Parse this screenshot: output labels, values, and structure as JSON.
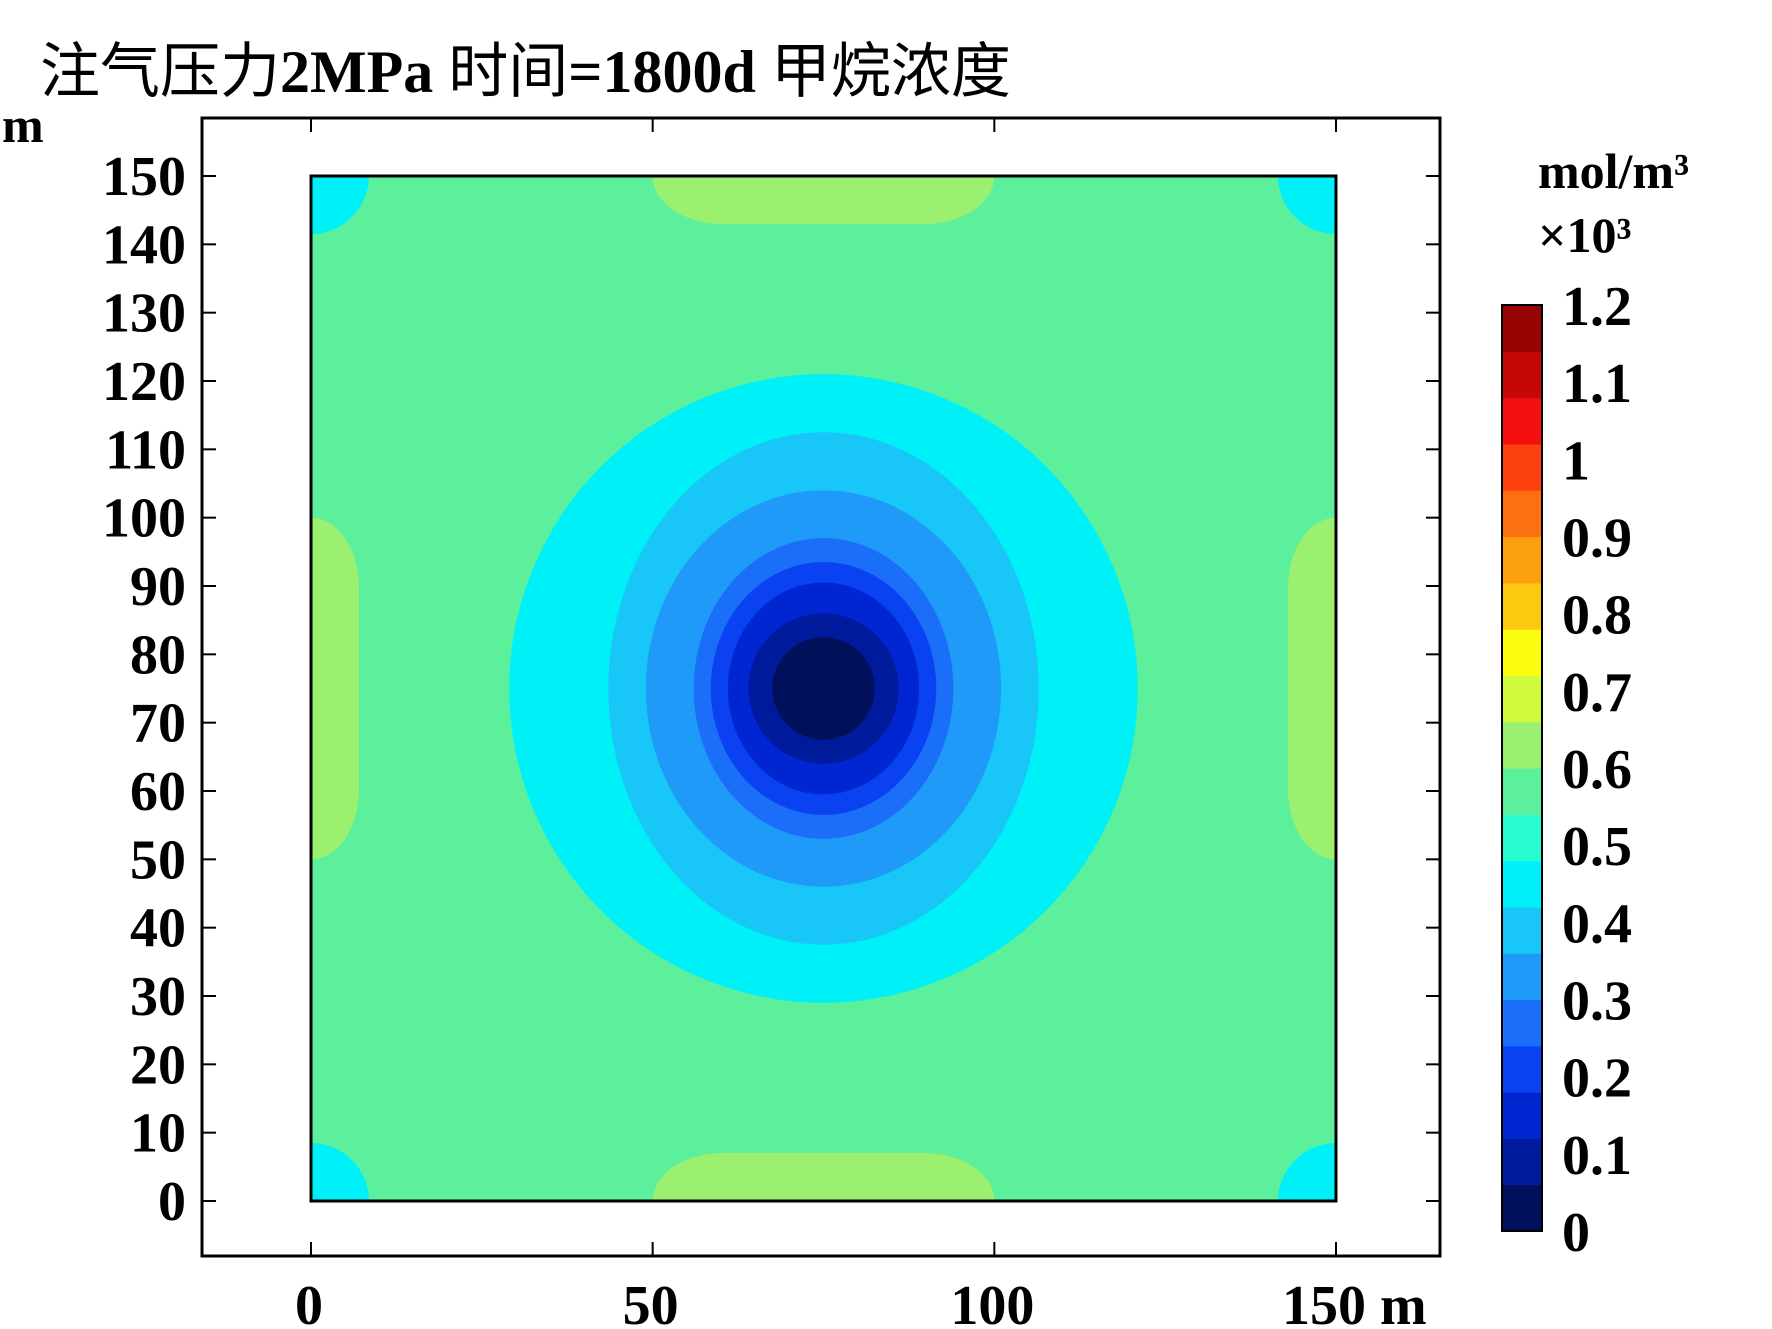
{
  "chart_data": {
    "type": "heatmap",
    "title_parts": [
      {
        "text": "注气压力",
        "bold": false
      },
      {
        "text": "2MPa",
        "bold": true
      },
      {
        "text": " 时间",
        "bold": false
      },
      {
        "text": "=1800d",
        "bold": true
      },
      {
        "text": " 甲烷浓度",
        "bold": false
      }
    ],
    "x_unit": "m",
    "y_unit": "m",
    "x_ticks": [
      0,
      50,
      100,
      150
    ],
    "y_ticks": [
      0,
      10,
      20,
      30,
      40,
      50,
      60,
      70,
      80,
      90,
      100,
      110,
      120,
      130,
      140,
      150
    ],
    "x_tick_labels": [
      "0",
      "50",
      "100",
      "150 m"
    ],
    "y_tick_labels": [
      "0",
      "10",
      "20",
      "30",
      "40",
      "50",
      "60",
      "70",
      "80",
      "90",
      "100",
      "110",
      "120",
      "130",
      "140",
      "150"
    ],
    "xlim": [
      -16,
      166
    ],
    "ylim": [
      -8,
      158
    ],
    "domain": {
      "x": [
        0,
        150
      ],
      "y": [
        0,
        150
      ]
    },
    "colorbar": {
      "unit": "mol/m³",
      "multiplier_label": "×10³",
      "range": [
        0,
        1.2
      ],
      "tick_values": [
        0,
        0.1,
        0.2,
        0.3,
        0.4,
        0.5,
        0.6,
        0.7,
        0.8,
        0.9,
        1,
        1.1,
        1.2
      ],
      "tick_labels": [
        "0",
        "0.1",
        "0.2",
        "0.3",
        "0.4",
        "0.5",
        "0.6",
        "0.7",
        "0.8",
        "0.9",
        "1",
        "1.1",
        "1.2"
      ],
      "colors": [
        "#00105a",
        "#001a9c",
        "#0026d2",
        "#0a42f2",
        "#1a6ef8",
        "#1f9af8",
        "#18c6f8",
        "#00f0f8",
        "#28fcd2",
        "#5cf09c",
        "#9cf070",
        "#d2fa3c",
        "#fcfc10",
        "#fcc810",
        "#fca010",
        "#fc7010",
        "#fc4010",
        "#f41010",
        "#c40808",
        "#960404"
      ]
    },
    "field": {
      "background_level": 0.55,
      "low_center": {
        "x": 75,
        "y": 75
      },
      "center_min_level": 0.05,
      "contour_rings": [
        {
          "level": 0.05,
          "radius_x": 7.5,
          "radius_y": 7.5
        },
        {
          "level": 0.1,
          "radius_x": 11,
          "radius_y": 11
        },
        {
          "level": 0.15,
          "radius_x": 14,
          "radius_y": 15.5
        },
        {
          "level": 0.2,
          "radius_x": 16.5,
          "radius_y": 18.5
        },
        {
          "level": 0.25,
          "radius_x": 19,
          "radius_y": 22
        },
        {
          "level": 0.3,
          "radius_x": 22,
          "radius_y": 25
        },
        {
          "level": 0.35,
          "radius_x": 26,
          "radius_y": 29
        },
        {
          "level": 0.4,
          "radius_x": 31.5,
          "radius_y": 37.5
        },
        {
          "level": 0.45,
          "radius_x": 46,
          "radius_y": 46
        }
      ],
      "edge_high_zones": [
        {
          "side": "top",
          "from": 50,
          "to": 100,
          "level": 0.6
        },
        {
          "side": "bottom",
          "from": 50,
          "to": 100,
          "level": 0.6
        },
        {
          "side": "left",
          "from": 50,
          "to": 100,
          "level": 0.6
        },
        {
          "side": "right",
          "from": 50,
          "to": 100,
          "level": 0.6
        }
      ],
      "corner_low_zones": [
        {
          "corner": "top-left",
          "level": 0.45
        },
        {
          "corner": "top-right",
          "level": 0.45
        },
        {
          "corner": "bottom-left",
          "level": 0.45
        },
        {
          "corner": "bottom-right",
          "level": 0.45
        }
      ]
    }
  }
}
